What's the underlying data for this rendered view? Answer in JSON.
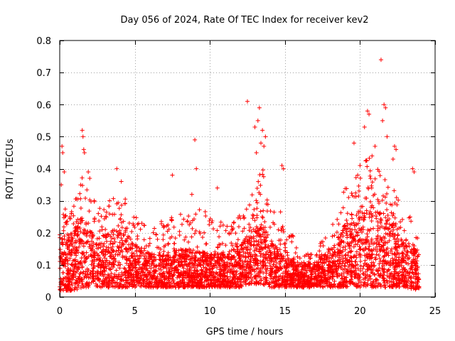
{
  "chart_data": {
    "type": "scatter",
    "title": "Day 056 of 2024, Rate Of TEC Index for receiver kev2",
    "xlabel": "GPS time / hours",
    "ylabel": "ROTI / TECUs",
    "xlim": [
      0,
      25
    ],
    "ylim": [
      0,
      0.8
    ],
    "xticks": [
      0,
      5,
      10,
      15,
      20,
      25
    ],
    "yticks": [
      0,
      0.1,
      0.2,
      0.3,
      0.4,
      0.5,
      0.6,
      0.7,
      0.8
    ],
    "xtick_labels": [
      "0",
      "5",
      "10",
      "15",
      "20",
      "25"
    ],
    "ytick_labels": [
      "0",
      "0.1",
      "0.2",
      "0.3",
      "0.4",
      "0.5",
      "0.6",
      "0.7",
      "0.8"
    ],
    "grid": true,
    "marker": "+",
    "color": "#ff0000",
    "series": [
      {
        "name": "ROTI",
        "envelope": [
          {
            "t": 0.0,
            "base": 0.02,
            "typ": 0.14,
            "peak": 0.3
          },
          {
            "t": 0.5,
            "base": 0.02,
            "typ": 0.13,
            "peak": 0.28
          },
          {
            "t": 1.0,
            "base": 0.02,
            "typ": 0.15,
            "peak": 0.3
          },
          {
            "t": 1.5,
            "base": 0.03,
            "typ": 0.18,
            "peak": 0.38
          },
          {
            "t": 2.0,
            "base": 0.03,
            "typ": 0.15,
            "peak": 0.33
          },
          {
            "t": 2.5,
            "base": 0.03,
            "typ": 0.13,
            "peak": 0.28
          },
          {
            "t": 3.0,
            "base": 0.03,
            "typ": 0.14,
            "peak": 0.28
          },
          {
            "t": 3.5,
            "base": 0.03,
            "typ": 0.15,
            "peak": 0.32
          },
          {
            "t": 4.0,
            "base": 0.03,
            "typ": 0.16,
            "peak": 0.34
          },
          {
            "t": 4.5,
            "base": 0.03,
            "typ": 0.14,
            "peak": 0.3
          },
          {
            "t": 5.0,
            "base": 0.03,
            "typ": 0.12,
            "peak": 0.26
          },
          {
            "t": 6.0,
            "base": 0.03,
            "typ": 0.1,
            "peak": 0.22
          },
          {
            "t": 7.0,
            "base": 0.03,
            "typ": 0.1,
            "peak": 0.24
          },
          {
            "t": 8.0,
            "base": 0.03,
            "typ": 0.11,
            "peak": 0.26
          },
          {
            "t": 9.0,
            "base": 0.03,
            "typ": 0.11,
            "peak": 0.28
          },
          {
            "t": 10.0,
            "base": 0.03,
            "typ": 0.1,
            "peak": 0.26
          },
          {
            "t": 11.0,
            "base": 0.03,
            "typ": 0.1,
            "peak": 0.24
          },
          {
            "t": 12.0,
            "base": 0.03,
            "typ": 0.12,
            "peak": 0.26
          },
          {
            "t": 12.5,
            "base": 0.04,
            "typ": 0.14,
            "peak": 0.3
          },
          {
            "t": 13.0,
            "base": 0.04,
            "typ": 0.16,
            "peak": 0.36
          },
          {
            "t": 13.5,
            "base": 0.04,
            "typ": 0.17,
            "peak": 0.42
          },
          {
            "t": 14.0,
            "base": 0.03,
            "typ": 0.13,
            "peak": 0.3
          },
          {
            "t": 15.0,
            "base": 0.03,
            "typ": 0.1,
            "peak": 0.26
          },
          {
            "t": 16.0,
            "base": 0.03,
            "typ": 0.08,
            "peak": 0.14
          },
          {
            "t": 17.0,
            "base": 0.03,
            "typ": 0.08,
            "peak": 0.14
          },
          {
            "t": 18.0,
            "base": 0.03,
            "typ": 0.11,
            "peak": 0.22
          },
          {
            "t": 19.0,
            "base": 0.03,
            "typ": 0.16,
            "peak": 0.34
          },
          {
            "t": 20.0,
            "base": 0.03,
            "typ": 0.19,
            "peak": 0.4
          },
          {
            "t": 20.5,
            "base": 0.03,
            "typ": 0.2,
            "peak": 0.44
          },
          {
            "t": 21.0,
            "base": 0.03,
            "typ": 0.2,
            "peak": 0.42
          },
          {
            "t": 21.5,
            "base": 0.03,
            "typ": 0.19,
            "peak": 0.38
          },
          {
            "t": 22.0,
            "base": 0.03,
            "typ": 0.17,
            "peak": 0.36
          },
          {
            "t": 23.0,
            "base": 0.03,
            "typ": 0.12,
            "peak": 0.28
          },
          {
            "t": 24.0,
            "base": 0.02,
            "typ": 0.1,
            "peak": 0.24
          }
        ],
        "outliers": [
          {
            "x": 0.1,
            "y": 0.35
          },
          {
            "x": 0.15,
            "y": 0.47
          },
          {
            "x": 0.2,
            "y": 0.45
          },
          {
            "x": 0.3,
            "y": 0.39
          },
          {
            "x": 1.5,
            "y": 0.52
          },
          {
            "x": 1.55,
            "y": 0.5
          },
          {
            "x": 1.6,
            "y": 0.46
          },
          {
            "x": 1.65,
            "y": 0.45
          },
          {
            "x": 2.0,
            "y": 0.37
          },
          {
            "x": 1.9,
            "y": 0.39
          },
          {
            "x": 3.8,
            "y": 0.4
          },
          {
            "x": 4.1,
            "y": 0.36
          },
          {
            "x": 7.5,
            "y": 0.38
          },
          {
            "x": 9.0,
            "y": 0.49
          },
          {
            "x": 9.1,
            "y": 0.4
          },
          {
            "x": 8.8,
            "y": 0.32
          },
          {
            "x": 10.5,
            "y": 0.34
          },
          {
            "x": 12.5,
            "y": 0.61
          },
          {
            "x": 13.3,
            "y": 0.59
          },
          {
            "x": 13.2,
            "y": 0.55
          },
          {
            "x": 13.0,
            "y": 0.53
          },
          {
            "x": 13.5,
            "y": 0.52
          },
          {
            "x": 13.7,
            "y": 0.5
          },
          {
            "x": 13.4,
            "y": 0.48
          },
          {
            "x": 13.1,
            "y": 0.45
          },
          {
            "x": 13.6,
            "y": 0.47
          },
          {
            "x": 14.8,
            "y": 0.41
          },
          {
            "x": 14.9,
            "y": 0.4
          },
          {
            "x": 19.6,
            "y": 0.48
          },
          {
            "x": 20.0,
            "y": 0.41
          },
          {
            "x": 20.3,
            "y": 0.53
          },
          {
            "x": 20.5,
            "y": 0.58
          },
          {
            "x": 20.6,
            "y": 0.57
          },
          {
            "x": 20.8,
            "y": 0.44
          },
          {
            "x": 21.0,
            "y": 0.47
          },
          {
            "x": 21.4,
            "y": 0.74
          },
          {
            "x": 21.6,
            "y": 0.6
          },
          {
            "x": 21.7,
            "y": 0.59
          },
          {
            "x": 21.5,
            "y": 0.55
          },
          {
            "x": 21.8,
            "y": 0.5
          },
          {
            "x": 22.3,
            "y": 0.47
          },
          {
            "x": 22.4,
            "y": 0.46
          },
          {
            "x": 22.2,
            "y": 0.43
          },
          {
            "x": 23.5,
            "y": 0.4
          },
          {
            "x": 23.6,
            "y": 0.39
          }
        ]
      }
    ]
  }
}
